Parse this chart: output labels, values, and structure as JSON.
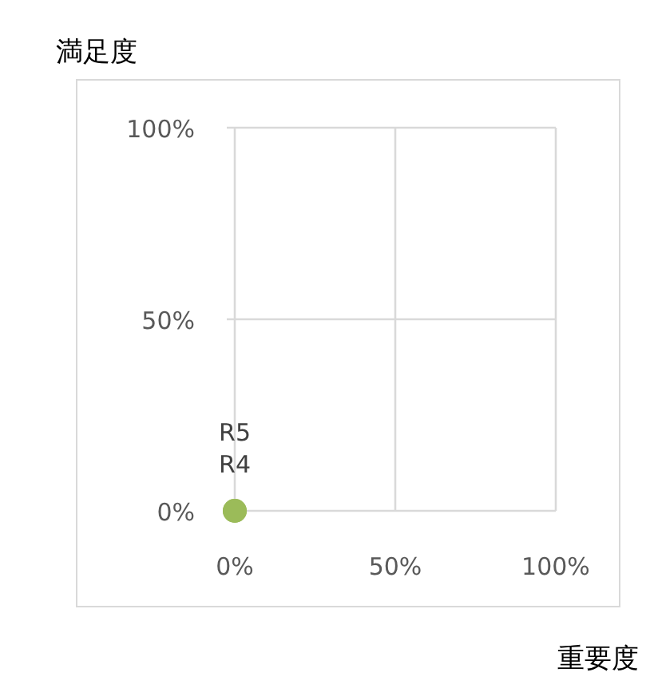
{
  "chart_data": {
    "type": "scatter",
    "xlabel": "重要度",
    "ylabel": "満足度",
    "x": [
      0,
      0
    ],
    "values": [
      0,
      0
    ],
    "value_labels": [
      "R4",
      "R5"
    ],
    "color": "#9bbb59",
    "marker": "circle",
    "xlim": [
      0,
      100
    ],
    "ylim": [
      0,
      100
    ],
    "xticks": [
      {
        "value": 0,
        "label": "0%"
      },
      {
        "value": 50,
        "label": "50%"
      },
      {
        "value": 100,
        "label": "100%"
      }
    ],
    "yticks": [
      {
        "value": 0,
        "label": "0%"
      },
      {
        "value": 50,
        "label": "50%"
      },
      {
        "value": 100,
        "label": "100%"
      }
    ],
    "grid": true,
    "legend": false
  }
}
